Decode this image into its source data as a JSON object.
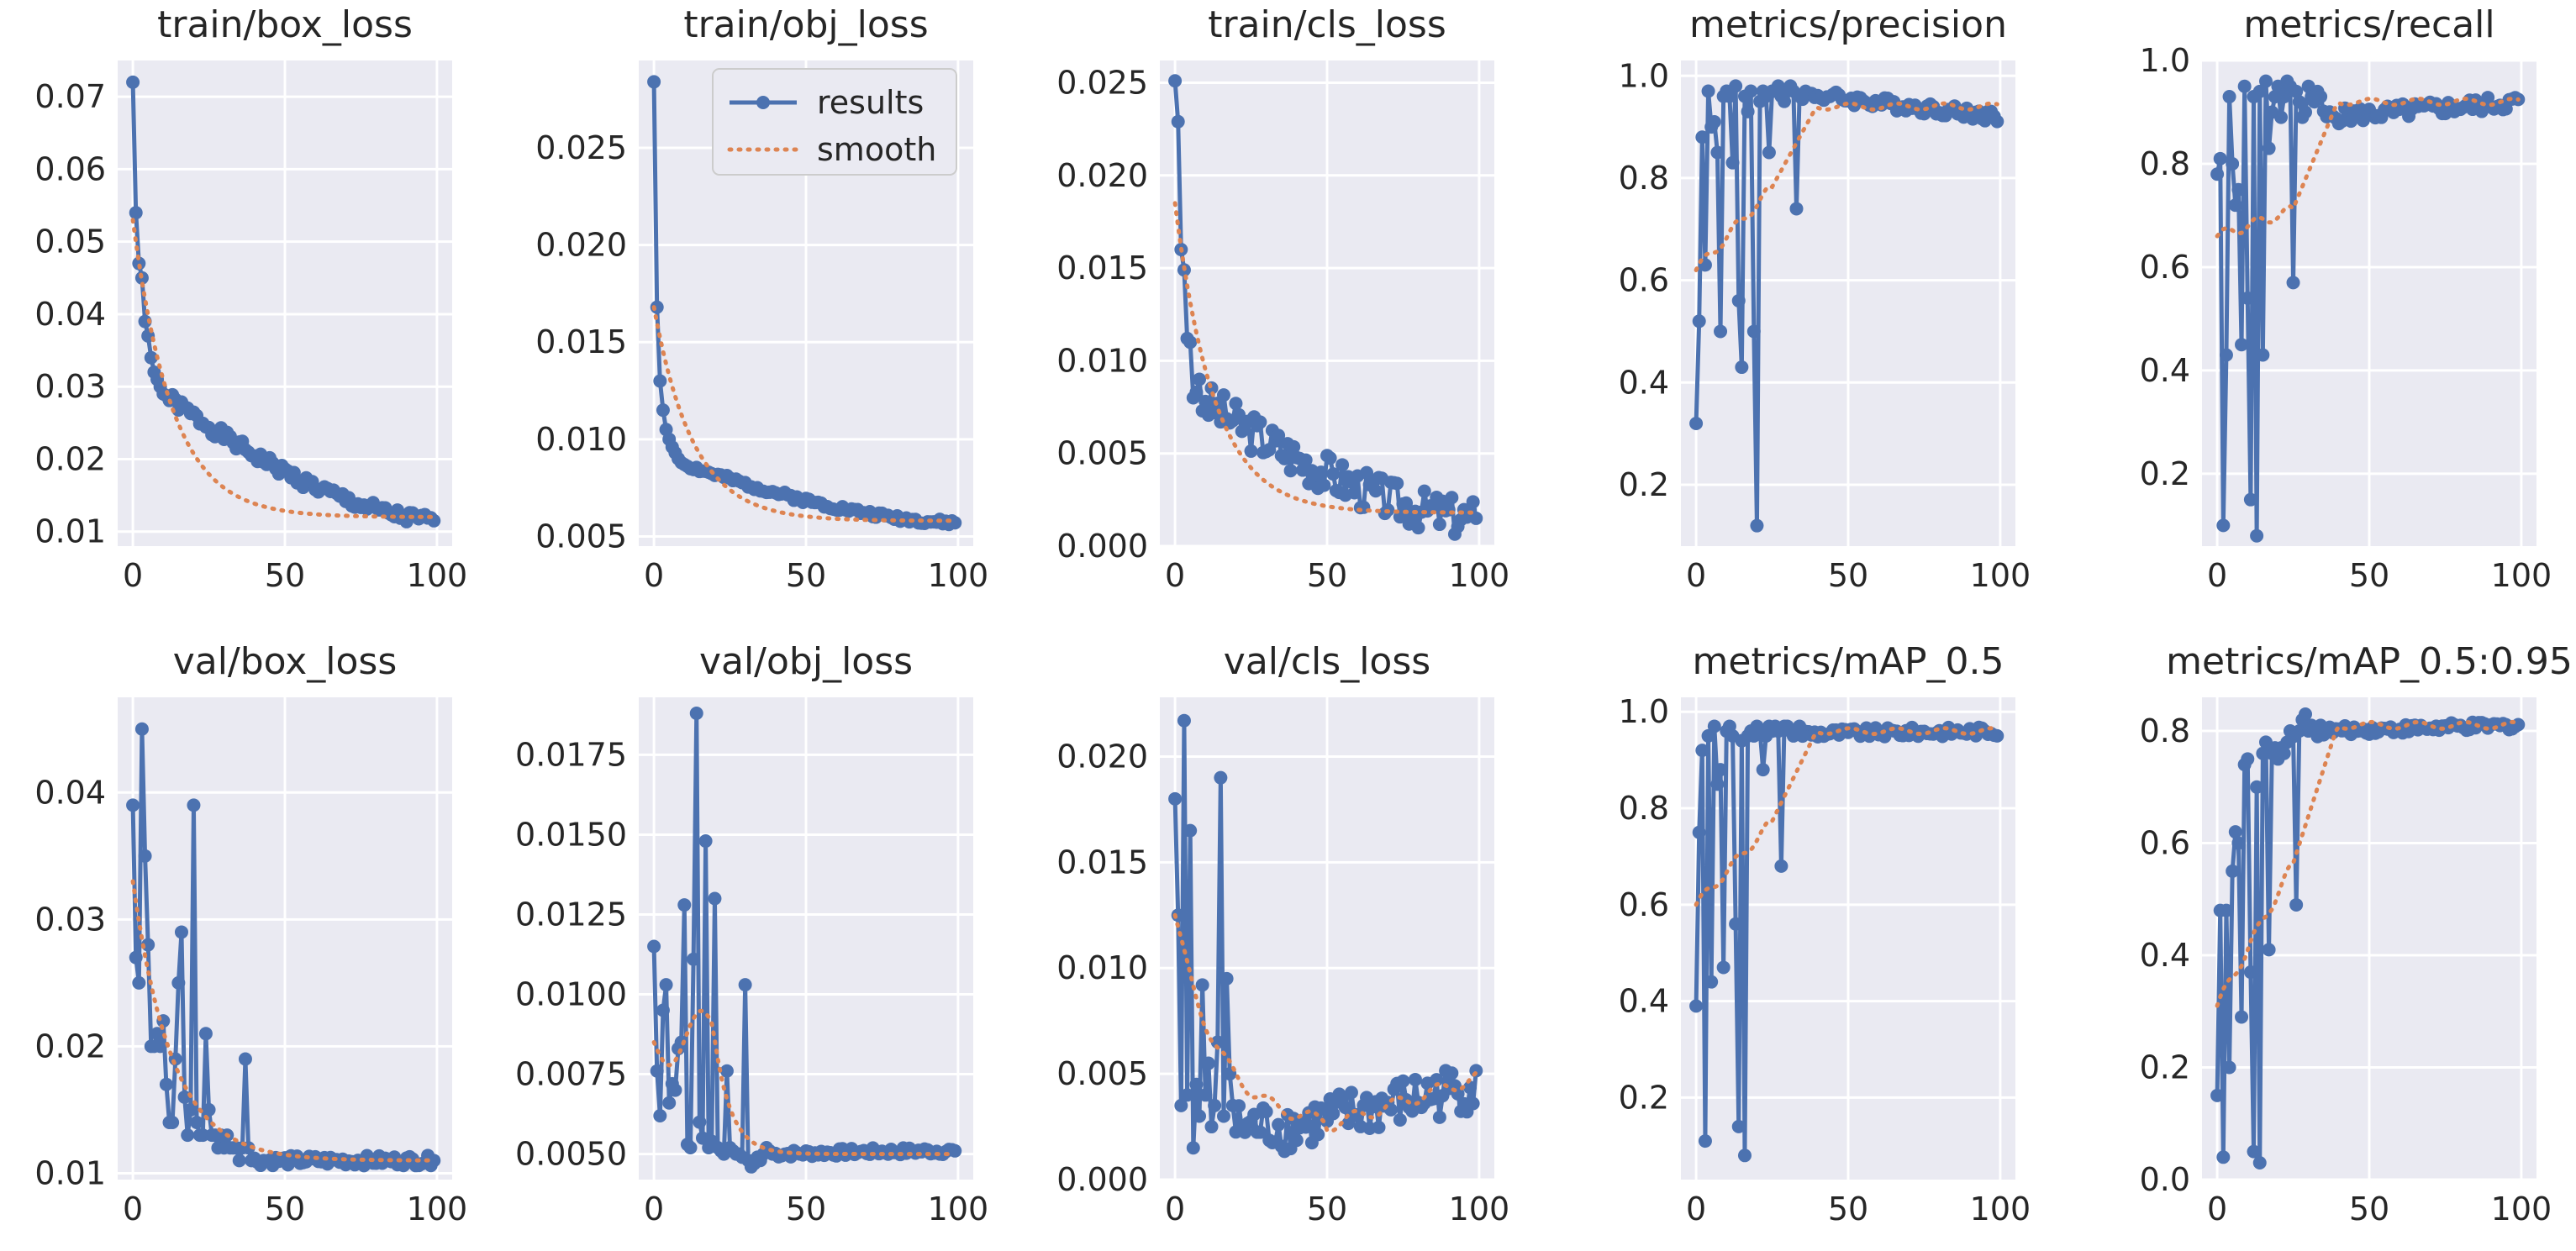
{
  "colors": {
    "results": "#4C72B0",
    "smooth": "#DD8452",
    "panel_bg": "#EAEAF2",
    "grid": "#FFFFFF",
    "text": "#262626"
  },
  "legend": {
    "results": "results",
    "smooth": "smooth"
  },
  "chart_data": [
    {
      "type": "line",
      "title": "train/box_loss",
      "xlim": [
        -5,
        105
      ],
      "ylim": [
        0.008,
        0.075
      ],
      "xticks": [
        {
          "v": 0,
          "l": "0"
        },
        {
          "v": 50,
          "l": "50"
        },
        {
          "v": 100,
          "l": "100"
        }
      ],
      "yticks": [
        {
          "v": 0.01,
          "l": "0.01"
        },
        {
          "v": 0.02,
          "l": "0.02"
        },
        {
          "v": 0.03,
          "l": "0.03"
        },
        {
          "v": 0.04,
          "l": "0.04"
        },
        {
          "v": 0.05,
          "l": "0.05"
        },
        {
          "v": 0.06,
          "l": "0.06"
        },
        {
          "v": 0.07,
          "l": "0.07"
        }
      ],
      "series": [
        {
          "name": "results",
          "kind": "decay",
          "start": 0.072,
          "end": 0.0115,
          "p": [
            0.072,
            0.054,
            0.047,
            0.045,
            0.039,
            0.037,
            0.034,
            0.032,
            0.031,
            0.03,
            0.029
          ],
          "k": 0.18,
          "amp": 0.0009,
          "seed": 1
        },
        {
          "name": "smooth",
          "kind": "smooth",
          "start": 0.053,
          "end": 0.012
        }
      ]
    },
    {
      "type": "line",
      "title": "train/obj_loss",
      "xlim": [
        -5,
        105
      ],
      "ylim": [
        0.0045,
        0.0295
      ],
      "xticks": [
        {
          "v": 0,
          "l": "0"
        },
        {
          "v": 50,
          "l": "50"
        },
        {
          "v": 100,
          "l": "100"
        }
      ],
      "yticks": [
        {
          "v": 0.005,
          "l": "0.005"
        },
        {
          "v": 0.01,
          "l": "0.010"
        },
        {
          "v": 0.015,
          "l": "0.015"
        },
        {
          "v": 0.02,
          "l": "0.020"
        },
        {
          "v": 0.025,
          "l": "0.025"
        }
      ],
      "legend": true,
      "series": [
        {
          "name": "results",
          "kind": "decay",
          "start": 0.0284,
          "end": 0.0057,
          "p": [
            0.0284,
            0.0168,
            0.013,
            0.0115,
            0.0105,
            0.01,
            0.0096,
            0.0093,
            0.009,
            0.0088,
            0.0087
          ],
          "k": 0.07,
          "amp": 0.00015,
          "seed": 2
        },
        {
          "name": "smooth",
          "kind": "smooth",
          "start": 0.0168,
          "end": 0.0058
        }
      ]
    },
    {
      "type": "line",
      "title": "train/cls_loss",
      "xlim": [
        -5,
        105
      ],
      "ylim": [
        0.0,
        0.0262
      ],
      "xticks": [
        {
          "v": 0,
          "l": "0"
        },
        {
          "v": 50,
          "l": "50"
        },
        {
          "v": 100,
          "l": "100"
        }
      ],
      "yticks": [
        {
          "v": 0.0,
          "l": "0.000"
        },
        {
          "v": 0.005,
          "l": "0.005"
        },
        {
          "v": 0.01,
          "l": "0.010"
        },
        {
          "v": 0.015,
          "l": "0.015"
        },
        {
          "v": 0.02,
          "l": "0.020"
        },
        {
          "v": 0.025,
          "l": "0.025"
        }
      ],
      "series": [
        {
          "name": "results",
          "kind": "decay",
          "start": 0.0251,
          "end": 0.0015,
          "p": [
            0.0251,
            0.0229,
            0.016,
            0.0149,
            0.0112,
            0.011,
            0.008,
            0.0083,
            0.009,
            0.0073,
            0.0078
          ],
          "k": 0.06,
          "amp": 0.0011,
          "seed": 3
        },
        {
          "name": "smooth",
          "kind": "smooth",
          "start": 0.0185,
          "end": 0.0018
        }
      ]
    },
    {
      "type": "line",
      "title": "metrics/precision",
      "xlim": [
        -5,
        105
      ],
      "ylim": [
        0.08,
        1.03
      ],
      "xticks": [
        {
          "v": 0,
          "l": "0"
        },
        {
          "v": 50,
          "l": "50"
        },
        {
          "v": 100,
          "l": "100"
        }
      ],
      "yticks": [
        {
          "v": 0.2,
          "l": "0.2"
        },
        {
          "v": 0.4,
          "l": "0.4"
        },
        {
          "v": 0.6,
          "l": "0.6"
        },
        {
          "v": 0.8,
          "l": "0.8"
        },
        {
          "v": 1.0,
          "l": "1.0"
        }
      ],
      "series": [
        {
          "name": "results",
          "kind": "metric",
          "base": 0.965,
          "end": 0.92,
          "amp": 0.012,
          "seed": 4,
          "p": [
            0.32,
            0.52,
            0.88,
            0.63,
            0.97,
            0.9,
            0.91,
            0.85,
            0.5,
            0.96,
            0.97,
            0.96,
            0.83,
            0.98,
            0.56,
            0.43,
            0.96,
            0.93,
            0.97,
            0.5,
            0.12,
            0.95,
            0.97,
            0.96,
            0.85,
            0.97,
            0.97,
            0.98,
            0.96,
            0.95,
            0.97,
            0.98,
            0.97,
            0.74,
            0.96
          ]
        },
        {
          "name": "smooth",
          "kind": "smoothmetric",
          "start": 0.62,
          "mid": 0.78,
          "end": 0.94
        }
      ]
    },
    {
      "type": "line",
      "title": "metrics/recall",
      "xlim": [
        -5,
        105
      ],
      "ylim": [
        0.06,
        1.0
      ],
      "xticks": [
        {
          "v": 0,
          "l": "0"
        },
        {
          "v": 50,
          "l": "50"
        },
        {
          "v": 100,
          "l": "100"
        }
      ],
      "yticks": [
        {
          "v": 0.2,
          "l": "0.2"
        },
        {
          "v": 0.4,
          "l": "0.4"
        },
        {
          "v": 0.6,
          "l": "0.6"
        },
        {
          "v": 0.8,
          "l": "0.8"
        },
        {
          "v": 1.0,
          "l": "1.0"
        }
      ],
      "series": [
        {
          "name": "results",
          "kind": "metric",
          "base": 0.89,
          "end": 0.92,
          "amp": 0.015,
          "seed": 5,
          "p": [
            0.78,
            0.81,
            0.1,
            0.43,
            0.93,
            0.8,
            0.72,
            0.75,
            0.45,
            0.95,
            0.54,
            0.15,
            0.93,
            0.08,
            0.94,
            0.43,
            0.96,
            0.83,
            0.9,
            0.93,
            0.95,
            0.89,
            0.93,
            0.96,
            0.95,
            0.57,
            0.94,
            0.92,
            0.89,
            0.9,
            0.95,
            0.93,
            0.92,
            0.94,
            0.93
          ]
        },
        {
          "name": "smooth",
          "kind": "smoothmetric",
          "start": 0.66,
          "mid": 0.71,
          "end": 0.92
        }
      ]
    },
    {
      "type": "line",
      "title": "val/box_loss",
      "xlim": [
        -5,
        105
      ],
      "ylim": [
        0.0095,
        0.0475
      ],
      "xticks": [
        {
          "v": 0,
          "l": "0"
        },
        {
          "v": 50,
          "l": "50"
        },
        {
          "v": 100,
          "l": "100"
        }
      ],
      "yticks": [
        {
          "v": 0.01,
          "l": "0.01"
        },
        {
          "v": 0.02,
          "l": "0.02"
        },
        {
          "v": 0.03,
          "l": "0.03"
        },
        {
          "v": 0.04,
          "l": "0.04"
        }
      ],
      "series": [
        {
          "name": "results",
          "kind": "decay",
          "start": 0.039,
          "end": 0.011,
          "p": [
            0.039,
            0.027,
            0.025,
            0.045,
            0.035,
            0.028,
            0.02,
            0.02,
            0.021,
            0.02,
            0.022,
            0.017,
            0.014,
            0.014,
            0.019,
            0.025,
            0.029,
            0.016,
            0.013,
            0.015,
            0.039,
            0.014,
            0.013,
            0.013,
            0.021,
            0.015,
            0.013,
            0.013,
            0.012,
            0.013,
            0.012,
            0.013,
            0.012,
            0.012,
            0.012,
            0.011,
            0.012,
            0.019,
            0.012,
            0.011
          ],
          "k": 0.06,
          "amp": 0.0004,
          "seed": 6
        },
        {
          "name": "smooth",
          "kind": "smooth",
          "start": 0.033,
          "end": 0.011
        }
      ]
    },
    {
      "type": "line",
      "title": "val/obj_loss",
      "xlim": [
        -5,
        105
      ],
      "ylim": [
        0.0042,
        0.0193
      ],
      "xticks": [
        {
          "v": 0,
          "l": "0"
        },
        {
          "v": 50,
          "l": "50"
        },
        {
          "v": 100,
          "l": "100"
        }
      ],
      "yticks": [
        {
          "v": 0.005,
          "l": "0.0050"
        },
        {
          "v": 0.0075,
          "l": "0.0075"
        },
        {
          "v": 0.01,
          "l": "0.0100"
        },
        {
          "v": 0.0125,
          "l": "0.0125"
        },
        {
          "v": 0.015,
          "l": "0.0150"
        },
        {
          "v": 0.0175,
          "l": "0.0175"
        }
      ],
      "series": [
        {
          "name": "results",
          "kind": "decay",
          "start": 0.0115,
          "end": 0.0051,
          "p": [
            0.0115,
            0.0076,
            0.0062,
            0.0095,
            0.0103,
            0.0066,
            0.0072,
            0.007,
            0.0083,
            0.0085,
            0.0128,
            0.0053,
            0.0052,
            0.0111,
            0.0188,
            0.006,
            0.0055,
            0.0148,
            0.0052,
            0.0054,
            0.013,
            0.0052,
            0.0051,
            0.005,
            0.0076,
            0.0052,
            0.0051,
            0.005,
            0.005,
            0.0049,
            0.0103,
            0.0048,
            0.0046,
            0.0047,
            0.0049,
            0.0048,
            0.005,
            0.0052,
            0.0051,
            0.005
          ],
          "k": 0.06,
          "amp": 0.00012,
          "seed": 7
        },
        {
          "name": "smooth",
          "kind": "bump",
          "start": 0.0085,
          "peak": 0.0087,
          "end": 0.005
        }
      ]
    },
    {
      "type": "line",
      "title": "val/cls_loss",
      "xlim": [
        -5,
        105
      ],
      "ylim": [
        0.0,
        0.0228
      ],
      "xticks": [
        {
          "v": 0,
          "l": "0"
        },
        {
          "v": 50,
          "l": "50"
        },
        {
          "v": 100,
          "l": "100"
        }
      ],
      "yticks": [
        {
          "v": 0.0,
          "l": "0.000"
        },
        {
          "v": 0.005,
          "l": "0.005"
        },
        {
          "v": 0.01,
          "l": "0.010"
        },
        {
          "v": 0.015,
          "l": "0.015"
        },
        {
          "v": 0.02,
          "l": "0.020"
        }
      ],
      "series": [
        {
          "name": "results",
          "kind": "ushape",
          "start": 0.018,
          "low": 0.0025,
          "end": 0.0045,
          "p": [
            0.018,
            0.0125,
            0.0035,
            0.0217,
            0.004,
            0.0165,
            0.0015,
            0.0045,
            0.003,
            0.0092,
            0.004,
            0.0055,
            0.0025,
            0.0035,
            0.0065,
            0.019,
            0.003,
            0.0095,
            0.005,
            0.0035
          ],
          "amp": 0.0012,
          "seed": 8
        },
        {
          "name": "smooth",
          "kind": "smoothu",
          "start": 0.0125,
          "low": 0.0025,
          "end": 0.0048
        }
      ]
    },
    {
      "type": "line",
      "title": "metrics/mAP_0.5",
      "xlim": [
        -5,
        105
      ],
      "ylim": [
        0.03,
        1.03
      ],
      "xticks": [
        {
          "v": 0,
          "l": "0"
        },
        {
          "v": 50,
          "l": "50"
        },
        {
          "v": 100,
          "l": "100"
        }
      ],
      "yticks": [
        {
          "v": 0.2,
          "l": "0.2"
        },
        {
          "v": 0.4,
          "l": "0.4"
        },
        {
          "v": 0.6,
          "l": "0.6"
        },
        {
          "v": 0.8,
          "l": "0.8"
        },
        {
          "v": 1.0,
          "l": "1.0"
        }
      ],
      "series": [
        {
          "name": "results",
          "kind": "metric",
          "base": 0.955,
          "end": 0.96,
          "amp": 0.01,
          "seed": 9,
          "p": [
            0.39,
            0.75,
            0.92,
            0.11,
            0.95,
            0.44,
            0.97,
            0.85,
            0.88,
            0.47,
            0.96,
            0.97,
            0.95,
            0.56,
            0.14,
            0.94,
            0.08,
            0.95,
            0.96,
            0.95,
            0.97,
            0.96,
            0.88,
            0.95,
            0.97,
            0.96,
            0.97,
            0.96,
            0.68,
            0.97,
            0.97,
            0.96,
            0.95,
            0.96,
            0.97
          ]
        },
        {
          "name": "smooth",
          "kind": "smoothmetric",
          "start": 0.6,
          "mid": 0.77,
          "end": 0.96
        }
      ]
    },
    {
      "type": "line",
      "title": "metrics/mAP_0.5:0.95",
      "xlim": [
        -5,
        105
      ],
      "ylim": [
        0.0,
        0.86
      ],
      "xticks": [
        {
          "v": 0,
          "l": "0"
        },
        {
          "v": 50,
          "l": "50"
        },
        {
          "v": 100,
          "l": "100"
        }
      ],
      "yticks": [
        {
          "v": 0.0,
          "l": "0.0"
        },
        {
          "v": 0.2,
          "l": "0.2"
        },
        {
          "v": 0.4,
          "l": "0.4"
        },
        {
          "v": 0.6,
          "l": "0.6"
        },
        {
          "v": 0.8,
          "l": "0.8"
        }
      ],
      "series": [
        {
          "name": "results",
          "kind": "metric",
          "base": 0.8,
          "end": 0.81,
          "amp": 0.008,
          "seed": 10,
          "p": [
            0.15,
            0.48,
            0.04,
            0.48,
            0.2,
            0.55,
            0.62,
            0.6,
            0.29,
            0.74,
            0.75,
            0.37,
            0.05,
            0.7,
            0.03,
            0.76,
            0.78,
            0.41,
            0.76,
            0.77,
            0.75,
            0.77,
            0.76,
            0.78,
            0.8,
            0.79,
            0.49,
            0.8,
            0.82,
            0.83,
            0.8,
            0.81,
            0.8,
            0.79,
            0.81
          ]
        },
        {
          "name": "smooth",
          "kind": "smoothmetric",
          "start": 0.31,
          "mid": 0.56,
          "end": 0.81
        }
      ]
    }
  ]
}
